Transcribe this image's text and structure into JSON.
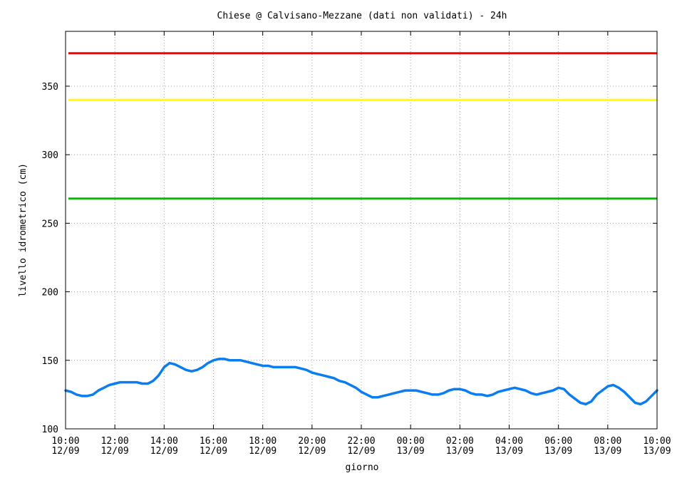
{
  "chart_data": {
    "type": "line",
    "title": "Chiese @ Calvisano-Mezzane (dati non validati) - 24h",
    "xlabel": "giorno",
    "ylabel": "livello idrometrico (cm)",
    "ylim": [
      100,
      390
    ],
    "xlim_hours": [
      0,
      23.75
    ],
    "grid": true,
    "yticks": [
      "100",
      "150",
      "200",
      "250",
      "300",
      "350"
    ],
    "xticks": [
      {
        "time": "10:00",
        "date": "12/09"
      },
      {
        "time": "12:00",
        "date": "12/09"
      },
      {
        "time": "14:00",
        "date": "12/09"
      },
      {
        "time": "16:00",
        "date": "12/09"
      },
      {
        "time": "18:00",
        "date": "12/09"
      },
      {
        "time": "20:00",
        "date": "12/09"
      },
      {
        "time": "22:00",
        "date": "12/09"
      },
      {
        "time": "00:00",
        "date": "13/09"
      },
      {
        "time": "02:00",
        "date": "13/09"
      },
      {
        "time": "04:00",
        "date": "13/09"
      },
      {
        "time": "06:00",
        "date": "13/09"
      },
      {
        "time": "08:00",
        "date": "13/09"
      },
      {
        "time": "10:00",
        "date": "13/09"
      }
    ],
    "thresholds": [
      {
        "value": 374,
        "color": "#ff0000"
      },
      {
        "value": 340,
        "color": "#ffff00"
      },
      {
        "value": 268,
        "color": "#00c000"
      }
    ],
    "series": [
      {
        "color": "#0a7df0",
        "points": [
          [
            0.0,
            128
          ],
          [
            0.25,
            127
          ],
          [
            0.5,
            125
          ],
          [
            0.75,
            124
          ],
          [
            1.0,
            124
          ],
          [
            1.25,
            125
          ],
          [
            1.5,
            128
          ],
          [
            1.75,
            130
          ],
          [
            2.0,
            132
          ],
          [
            2.25,
            133
          ],
          [
            2.5,
            134
          ],
          [
            2.75,
            134
          ],
          [
            3.0,
            134
          ],
          [
            3.25,
            134
          ],
          [
            3.5,
            133
          ],
          [
            3.75,
            133
          ],
          [
            4.0,
            135
          ],
          [
            4.25,
            139
          ],
          [
            4.5,
            145
          ],
          [
            4.75,
            148
          ],
          [
            5.0,
            147
          ],
          [
            5.25,
            145
          ],
          [
            5.5,
            143
          ],
          [
            5.75,
            142
          ],
          [
            6.0,
            143
          ],
          [
            6.25,
            145
          ],
          [
            6.5,
            148
          ],
          [
            6.75,
            150
          ],
          [
            7.0,
            151
          ],
          [
            7.25,
            151
          ],
          [
            7.5,
            150
          ],
          [
            7.75,
            150
          ],
          [
            8.0,
            150
          ],
          [
            8.25,
            149
          ],
          [
            8.5,
            148
          ],
          [
            8.75,
            147
          ],
          [
            9.0,
            146
          ],
          [
            9.25,
            146
          ],
          [
            9.5,
            145
          ],
          [
            9.75,
            145
          ],
          [
            10.0,
            145
          ],
          [
            10.25,
            145
          ],
          [
            10.5,
            145
          ],
          [
            10.75,
            144
          ],
          [
            11.0,
            143
          ],
          [
            11.25,
            141
          ],
          [
            11.5,
            140
          ],
          [
            11.75,
            139
          ],
          [
            12.0,
            138
          ],
          [
            12.25,
            137
          ],
          [
            12.5,
            135
          ],
          [
            12.75,
            134
          ],
          [
            13.0,
            132
          ],
          [
            13.25,
            130
          ],
          [
            13.5,
            127
          ],
          [
            13.75,
            125
          ],
          [
            14.0,
            123
          ],
          [
            14.25,
            123
          ],
          [
            14.5,
            124
          ],
          [
            14.75,
            125
          ],
          [
            15.0,
            126
          ],
          [
            15.25,
            127
          ],
          [
            15.5,
            128
          ],
          [
            15.75,
            128
          ],
          [
            16.0,
            128
          ],
          [
            16.25,
            127
          ],
          [
            16.5,
            126
          ],
          [
            16.75,
            125
          ],
          [
            17.0,
            125
          ],
          [
            17.25,
            126
          ],
          [
            17.5,
            128
          ],
          [
            17.75,
            129
          ],
          [
            18.0,
            129
          ],
          [
            18.25,
            128
          ],
          [
            18.5,
            126
          ],
          [
            18.75,
            125
          ],
          [
            19.0,
            125
          ],
          [
            19.25,
            124
          ],
          [
            19.5,
            125
          ],
          [
            19.75,
            127
          ],
          [
            20.0,
            128
          ],
          [
            20.25,
            129
          ],
          [
            20.5,
            130
          ],
          [
            20.75,
            129
          ],
          [
            21.0,
            128
          ],
          [
            21.25,
            126
          ],
          [
            21.5,
            125
          ],
          [
            21.75,
            126
          ],
          [
            22.0,
            127
          ],
          [
            22.25,
            128
          ],
          [
            22.5,
            130
          ],
          [
            22.75,
            129
          ],
          [
            23.0,
            125
          ],
          [
            23.25,
            122
          ],
          [
            23.5,
            119
          ],
          [
            23.75,
            118
          ],
          [
            24.0,
            120
          ],
          [
            24.25,
            125
          ],
          [
            24.5,
            128
          ],
          [
            24.75,
            131
          ],
          [
            25.0,
            132
          ],
          [
            25.25,
            130
          ],
          [
            25.5,
            127
          ],
          [
            25.75,
            123
          ],
          [
            26.0,
            119
          ],
          [
            26.25,
            118
          ],
          [
            26.5,
            120
          ],
          [
            26.75,
            124
          ],
          [
            27.0,
            128
          ]
        ]
      }
    ]
  }
}
